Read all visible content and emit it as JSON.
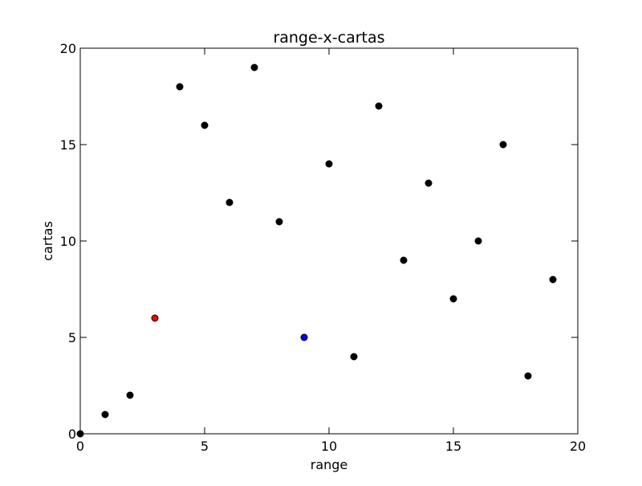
{
  "chart_data": {
    "type": "scatter",
    "title": "range-x-cartas",
    "xlabel": "range",
    "ylabel": "cartas",
    "xlim": [
      0,
      20
    ],
    "ylim": [
      0,
      20
    ],
    "xticks": [
      0,
      5,
      10,
      15,
      20
    ],
    "yticks": [
      0,
      5,
      10,
      15,
      20
    ],
    "grid": false,
    "colors": {
      "default": "#000000",
      "highlight_red": "#ff0000",
      "highlight_blue": "#0000ff"
    },
    "points": [
      {
        "x": 0,
        "y": 0,
        "color": "#000000"
      },
      {
        "x": 1,
        "y": 1,
        "color": "#000000"
      },
      {
        "x": 2,
        "y": 2,
        "color": "#000000"
      },
      {
        "x": 3,
        "y": 6,
        "color": "#ff0000"
      },
      {
        "x": 4,
        "y": 18,
        "color": "#000000"
      },
      {
        "x": 5,
        "y": 16,
        "color": "#000000"
      },
      {
        "x": 6,
        "y": 12,
        "color": "#000000"
      },
      {
        "x": 7,
        "y": 19,
        "color": "#000000"
      },
      {
        "x": 8,
        "y": 11,
        "color": "#000000"
      },
      {
        "x": 9,
        "y": 5,
        "color": "#0000ff"
      },
      {
        "x": 10,
        "y": 14,
        "color": "#000000"
      },
      {
        "x": 11,
        "y": 4,
        "color": "#000000"
      },
      {
        "x": 12,
        "y": 17,
        "color": "#000000"
      },
      {
        "x": 13,
        "y": 9,
        "color": "#000000"
      },
      {
        "x": 14,
        "y": 13,
        "color": "#000000"
      },
      {
        "x": 15,
        "y": 7,
        "color": "#000000"
      },
      {
        "x": 16,
        "y": 10,
        "color": "#000000"
      },
      {
        "x": 17,
        "y": 15,
        "color": "#000000"
      },
      {
        "x": 18,
        "y": 3,
        "color": "#000000"
      },
      {
        "x": 19,
        "y": 8,
        "color": "#000000"
      }
    ]
  }
}
